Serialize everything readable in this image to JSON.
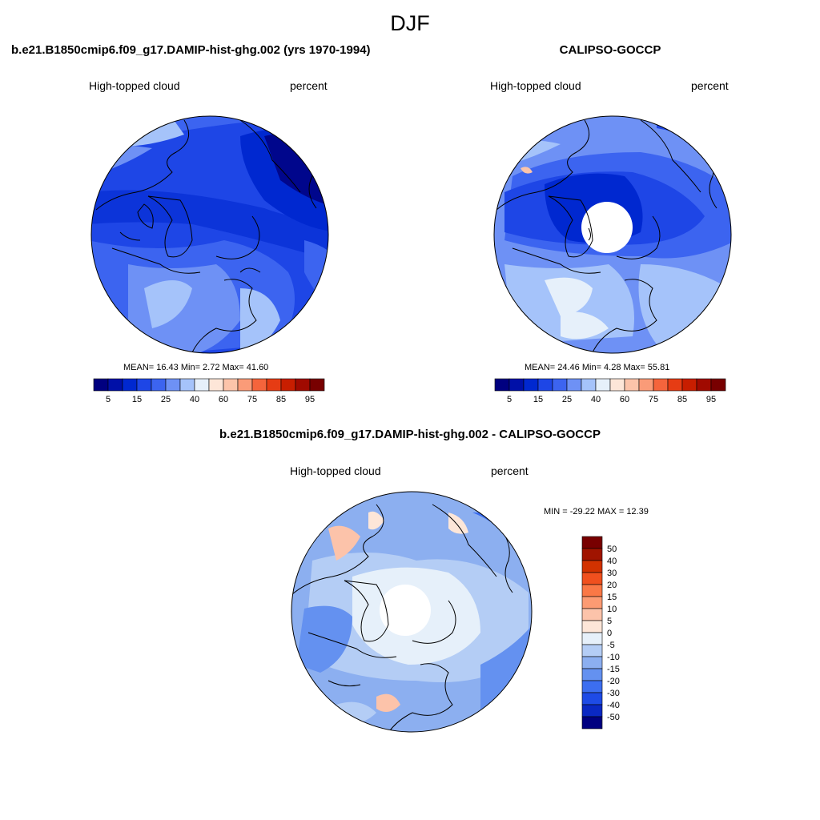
{
  "header": {
    "title": "DJF"
  },
  "panels": [
    {
      "title": "b.e21.B1850cmip6.f09_g17.DAMIP-hist-ghg.002 (yrs 1970-1994)",
      "left_label": "High-topped cloud",
      "right_label": "percent",
      "stats": "MEAN=  16.43  Min=   2.72  Max=  41.60"
    },
    {
      "title": "CALIPSO-GOCCP",
      "left_label": "High-topped cloud",
      "right_label": "percent",
      "stats": "MEAN=  24.46  Min=   4.28  Max=  55.81"
    },
    {
      "title": "b.e21.B1850cmip6.f09_g17.DAMIP-hist-ghg.002 - CALIPSO-GOCCP",
      "left_label": "High-topped cloud",
      "right_label": "percent",
      "stats": "MIN = -29.22 MAX =  12.39"
    }
  ],
  "chart_data": [
    {
      "type": "heatmap",
      "projection": "north-polar-stereographic",
      "mean": 16.43,
      "min": 2.72,
      "max": 41.6,
      "colorbar": {
        "orientation": "horizontal",
        "tick_labels": [
          "5",
          "15",
          "25",
          "40",
          "60",
          "75",
          "85",
          "95"
        ],
        "levels": [
          5,
          10,
          15,
          20,
          25,
          30,
          40,
          50,
          60,
          70,
          75,
          80,
          85,
          90,
          95
        ],
        "colors": [
          "#000080",
          "#0010a8",
          "#0028d0",
          "#1e46e6",
          "#3c64f0",
          "#6e91f5",
          "#a5c3fa",
          "#e6f0fa",
          "#fde6d8",
          "#fcc4aa",
          "#fa9b78",
          "#f5643c",
          "#e63c14",
          "#c81e00",
          "#a00a00",
          "#780000"
        ]
      }
    },
    {
      "type": "heatmap",
      "projection": "north-polar-stereographic",
      "mean": 24.46,
      "min": 4.28,
      "max": 55.81,
      "colorbar": {
        "orientation": "horizontal",
        "tick_labels": [
          "5",
          "15",
          "25",
          "40",
          "60",
          "75",
          "85",
          "95"
        ],
        "levels": [
          5,
          10,
          15,
          20,
          25,
          30,
          40,
          50,
          60,
          70,
          75,
          80,
          85,
          90,
          95
        ],
        "colors": [
          "#000080",
          "#0010a8",
          "#0028d0",
          "#1e46e6",
          "#3c64f0",
          "#6e91f5",
          "#a5c3fa",
          "#e6f0fa",
          "#fde6d8",
          "#fcc4aa",
          "#fa9b78",
          "#f5643c",
          "#e63c14",
          "#c81e00",
          "#a00a00",
          "#780000"
        ]
      }
    },
    {
      "type": "heatmap",
      "projection": "north-polar-stereographic",
      "min": -29.22,
      "max": 12.39,
      "colorbar": {
        "orientation": "vertical",
        "tick_labels": [
          "50",
          "40",
          "30",
          "20",
          "15",
          "10",
          "5",
          "0",
          "-5",
          "-10",
          "-15",
          "-20",
          "-30",
          "-40",
          "-50"
        ],
        "colors": [
          "#780000",
          "#a01400",
          "#d23200",
          "#f0501e",
          "#fa7846",
          "#fc9b73",
          "#fcc3aa",
          "#fde6d8",
          "#e6f0fa",
          "#b4cdf5",
          "#8caff0",
          "#6491f0",
          "#3c6ef0",
          "#1e4be6",
          "#0a28c3",
          "#000080"
        ]
      }
    }
  ]
}
